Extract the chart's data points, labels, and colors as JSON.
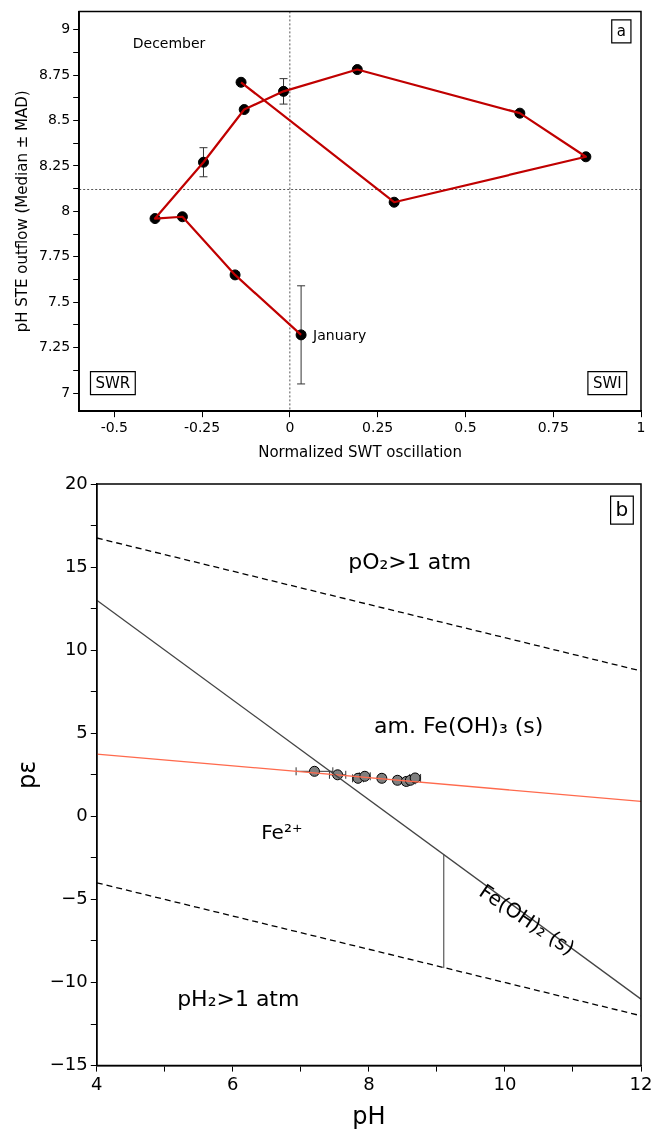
{
  "chart_data": [
    {
      "type": "scatter",
      "xlabel": "Normalized SWT oscillation",
      "ylabel": "pH STE outflow (Median ± MAD)",
      "xlim": [
        -0.6,
        1
      ],
      "xticks": [
        -0.5,
        -0.25,
        0,
        0.25,
        0.5,
        0.75,
        1
      ],
      "ylim": [
        6.9,
        9.1
      ],
      "yticks": [
        7,
        {
          "value": 7.125,
          "label": null
        },
        7.25,
        {
          "value": 7.375,
          "label": null
        },
        7.5,
        {
          "value": 7.625,
          "label": null
        },
        7.75,
        {
          "value": 7.875,
          "label": null
        },
        8,
        {
          "value": 8.125,
          "label": null
        },
        8.25,
        {
          "value": 8.375,
          "label": null
        },
        8.5,
        {
          "value": 8.625,
          "label": null
        },
        8.75,
        {
          "value": 8.875,
          "label": null
        },
        9
      ],
      "grid": false,
      "legend": false,
      "ref_lines": [
        {
          "axis": "x",
          "value": 0,
          "color": "#555555",
          "line_style": "dotted"
        },
        {
          "axis": "y",
          "value": 8.12,
          "color": "#555555",
          "line_style": "dotted"
        }
      ],
      "annotations": [
        "December",
        {
          "text": "January",
          "x": 0.032,
          "y": 7.32
        },
        "SWR",
        "SWI",
        "a"
      ],
      "series": [
        {
          "type": "line",
          "color": "#c00000",
          "marker": "none",
          "x": [
            0.032,
            -0.156,
            -0.306,
            -0.384,
            -0.246,
            -0.13,
            -0.018,
            0.192,
            0.655,
            0.843,
            0.297,
            -0.139
          ],
          "values": [
            7.32,
            7.65,
            7.97,
            7.96,
            8.27,
            8.56,
            8.66,
            8.78,
            8.54,
            8.3,
            8.05,
            8.71
          ]
        },
        {
          "color": "#000000",
          "marker": "circle",
          "x": [
            0.032,
            -0.156,
            -0.306,
            -0.384,
            -0.246,
            -0.13,
            -0.018,
            0.192,
            0.655,
            0.843,
            0.297,
            -0.139
          ],
          "values": [
            7.32,
            7.65,
            7.97,
            7.96,
            8.27,
            8.56,
            8.66,
            8.78,
            8.54,
            8.3,
            8.05,
            8.71
          ],
          "errors": [
            0.27,
            0.01,
            0.01,
            0.01,
            0.08,
            0.01,
            0.07,
            0.01,
            0.01,
            0.01,
            0.01,
            0.01
          ]
        }
      ]
    },
    {
      "type": "line",
      "xlabel": "pH",
      "ylabel": "pε",
      "xlim": [
        4,
        12
      ],
      "xticks": [
        4,
        {
          "value": 5,
          "label": null
        },
        6,
        {
          "value": 7,
          "label": null
        },
        8,
        {
          "value": 9,
          "label": null
        },
        10,
        {
          "value": 11,
          "label": null
        },
        12
      ],
      "ylim": [
        -15,
        20
      ],
      "yticks": [
        {
          "value": -15,
          "label": "−15"
        },
        {
          "value": -12.5,
          "label": null
        },
        {
          "value": -10,
          "label": "−10"
        },
        {
          "value": -7.5,
          "label": null
        },
        {
          "value": -5,
          "label": "−5"
        },
        {
          "value": -2.5,
          "label": null
        },
        0,
        {
          "value": 2.5,
          "label": null
        },
        5,
        {
          "value": 7.5,
          "label": null
        },
        10,
        {
          "value": 12.5,
          "label": null
        },
        15,
        {
          "value": 17.5,
          "label": null
        },
        20
      ],
      "grid": false,
      "legend": false,
      "annotations": [
        "pO₂>1 atm",
        "am. Fe(OH)₃ (s)",
        "Fe²⁺",
        "Fe(OH)₂ (s)",
        "pH₂>1 atm",
        "b"
      ],
      "series": [
        {
          "color": "#000000",
          "marker": "none",
          "line_style": "dashed",
          "x": [
            4,
            12
          ],
          "values": [
            16.75,
            8.75
          ]
        },
        {
          "color": "#444444",
          "marker": "none",
          "x": [
            4,
            12
          ],
          "values": [
            13,
            -11
          ]
        },
        {
          "color": "#666666",
          "marker": "none",
          "x": [
            9.1,
            9.1
          ],
          "values": [
            -2.3,
            -9.1
          ]
        },
        {
          "color": "#000000",
          "marker": "none",
          "line_style": "dashed",
          "x": [
            4,
            12
          ],
          "values": [
            -4,
            -12
          ]
        },
        {
          "color": "#ff6a4d",
          "marker": "none",
          "x": [
            4,
            12
          ],
          "values": [
            3.75,
            0.9
          ]
        },
        {
          "type": "scatter",
          "color": "#7f7f7f",
          "marker": "circle",
          "x": [
            7.2,
            7.54,
            7.84,
            7.94,
            8.19,
            8.42,
            8.55,
            8.61,
            8.68
          ],
          "values": [
            2.71,
            2.5,
            2.29,
            2.41,
            2.29,
            2.17,
            2.1,
            2.17,
            2.31
          ],
          "xerrors": [
            0.27,
            0.12,
            0.08,
            0.08,
            0.05,
            0.05,
            0.05,
            0.07,
            0.08
          ]
        }
      ]
    }
  ]
}
